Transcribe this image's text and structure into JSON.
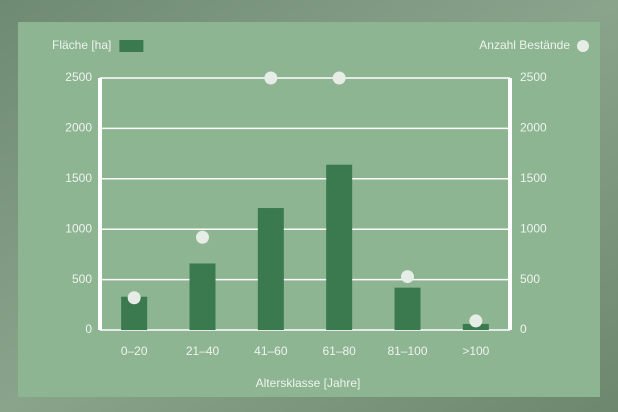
{
  "chart_data": {
    "type": "bar",
    "categories": [
      "0–20",
      "21–40",
      "41–60",
      "61–80",
      "81–100",
      ">100"
    ],
    "x_label": "Altersklasse [Jahre]",
    "series": [
      {
        "name": "Fläche [ha]",
        "type": "bar",
        "color": "#3b7a4e",
        "values": [
          330,
          660,
          1210,
          1640,
          420,
          60
        ]
      },
      {
        "name": "Anzahl Bestände",
        "type": "scatter",
        "axis": "y2",
        "color": "#e6ece6",
        "values": [
          320,
          920,
          2500,
          2500,
          530,
          90
        ]
      }
    ],
    "ylim": [
      0,
      2500
    ],
    "yticks": [
      0,
      500,
      1000,
      1500,
      2000,
      2500
    ],
    "y2lim": [
      0,
      2500
    ],
    "y2ticks": [
      0,
      500,
      1000,
      1500,
      2000,
      2500
    ],
    "grid": true
  }
}
